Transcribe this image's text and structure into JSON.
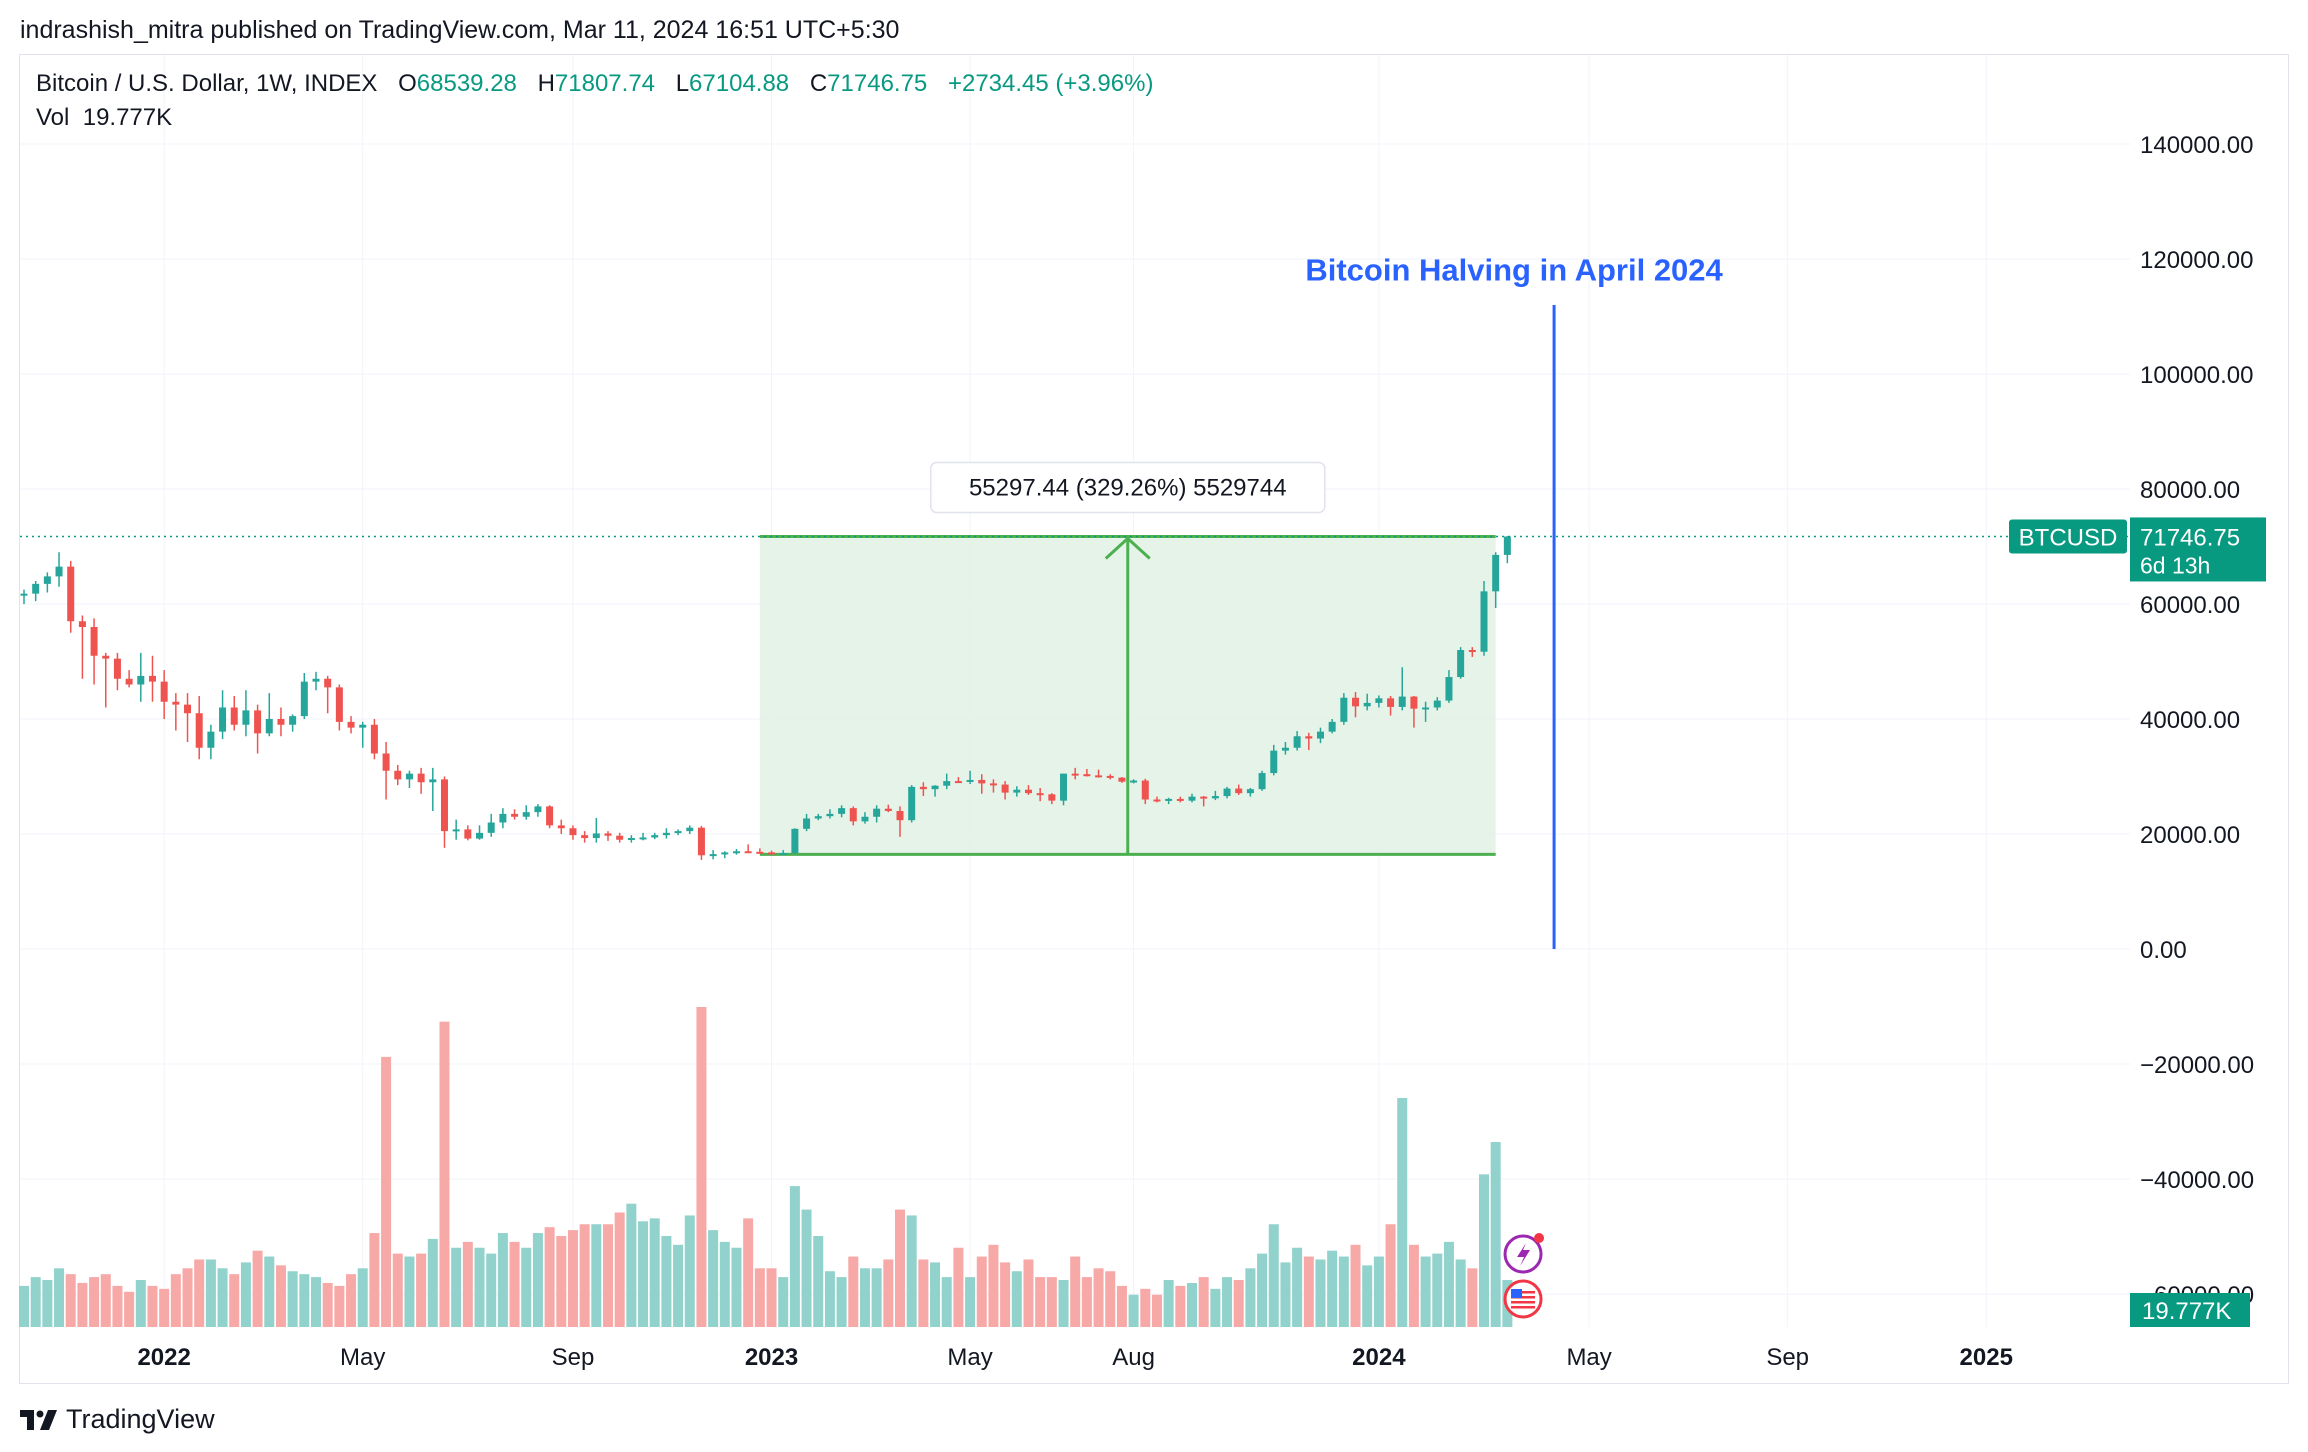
{
  "header": {
    "published": "indrashish_mitra published on TradingView.com, Mar 11, 2024 16:51 UTC+5:30"
  },
  "legend": {
    "symbol": "Bitcoin / U.S. Dollar, 1W, INDEX",
    "open_label": "O",
    "open": "68539.28",
    "high_label": "H",
    "high": "71807.74",
    "low_label": "L",
    "low": "67104.88",
    "close_label": "C",
    "close": "71746.75",
    "change": "+2734.45 (+3.96%)",
    "vol_label": "Vol",
    "vol": "19.777K"
  },
  "colors": {
    "up": "#26a69a",
    "down": "#ef5350",
    "vol_up": "#92d2cc",
    "vol_down": "#f7a9a7",
    "range_fill": "#e3f2e5",
    "range_line": "#4caf50",
    "halving_line": "#2962ff",
    "halving_text": "#2962ff",
    "badge": "#089981"
  },
  "chart_data": {
    "type": "candlestick",
    "symbol": "BTCUSD",
    "interval": "1W",
    "ylim": [
      -72000,
      152000
    ],
    "y_ticks": [
      140000,
      120000,
      100000,
      80000,
      60000,
      40000,
      20000,
      0,
      -20000,
      -40000,
      -60000
    ],
    "y_tick_labels": [
      "140000.00",
      "120000.00",
      "100000.00",
      "80000.00",
      "60000.00",
      "40000.00",
      "20000.00",
      "0.00",
      "−20000.00",
      "−40000.00",
      "−60000.00"
    ],
    "x_labels": [
      {
        "label": "2022",
        "week": 12,
        "bold": true
      },
      {
        "label": "May",
        "week": 29,
        "bold": false
      },
      {
        "label": "Sep",
        "week": 47,
        "bold": false
      },
      {
        "label": "2023",
        "week": 64,
        "bold": true
      },
      {
        "label": "May",
        "week": 81,
        "bold": false
      },
      {
        "label": "Aug",
        "week": 95,
        "bold": false
      },
      {
        "label": "2024",
        "week": 116,
        "bold": true
      },
      {
        "label": "May",
        "week": 134,
        "bold": false
      },
      {
        "label": "Sep",
        "week": 151,
        "bold": false
      },
      {
        "label": "2025",
        "week": 168,
        "bold": true
      }
    ],
    "candles": [
      [
        61500,
        62500,
        60000,
        61800,
        14
      ],
      [
        61800,
        64000,
        60500,
        63500,
        17
      ],
      [
        63500,
        65500,
        62000,
        64800,
        16
      ],
      [
        64800,
        69000,
        63000,
        66500,
        20
      ],
      [
        66500,
        67500,
        55000,
        57000,
        18
      ],
      [
        57000,
        58000,
        47000,
        56000,
        15
      ],
      [
        56000,
        57500,
        46000,
        51000,
        17
      ],
      [
        51000,
        51500,
        42000,
        50500,
        18
      ],
      [
        50500,
        51500,
        45000,
        47000,
        14
      ],
      [
        47000,
        48500,
        45500,
        46000,
        12
      ],
      [
        46000,
        51500,
        43000,
        47500,
        16
      ],
      [
        47500,
        51000,
        43000,
        46500,
        14
      ],
      [
        46500,
        48500,
        40000,
        43000,
        13
      ],
      [
        43000,
        44500,
        38000,
        42500,
        18
      ],
      [
        42500,
        44500,
        36000,
        41000,
        20
      ],
      [
        41000,
        44000,
        33000,
        35000,
        23
      ],
      [
        35000,
        39000,
        33000,
        37800,
        23
      ],
      [
        37800,
        45000,
        36500,
        42000,
        20
      ],
      [
        42000,
        44000,
        38000,
        39000,
        18
      ],
      [
        39000,
        45000,
        37000,
        41500,
        22
      ],
      [
        41500,
        42500,
        34000,
        37500,
        26
      ],
      [
        37500,
        44500,
        37000,
        40000,
        24
      ],
      [
        40000,
        42000,
        37000,
        39000,
        21
      ],
      [
        39000,
        40800,
        37800,
        40500,
        19
      ],
      [
        40500,
        48000,
        40000,
        46500,
        18
      ],
      [
        46500,
        48200,
        45000,
        47000,
        17
      ],
      [
        47000,
        47500,
        41000,
        45500,
        15
      ],
      [
        45500,
        46000,
        38000,
        39500,
        14
      ],
      [
        39500,
        40500,
        37500,
        38500,
        18
      ],
      [
        38500,
        39500,
        35000,
        39000,
        20
      ],
      [
        39000,
        40000,
        33000,
        34000,
        32
      ],
      [
        34000,
        36000,
        26000,
        31000,
        92
      ],
      [
        31000,
        32000,
        28500,
        29500,
        25
      ],
      [
        29500,
        31000,
        28000,
        30500,
        24
      ],
      [
        30500,
        31500,
        27000,
        29000,
        25
      ],
      [
        29000,
        31500,
        24000,
        29500,
        30
      ],
      [
        29500,
        30000,
        17600,
        20500,
        104
      ],
      [
        20500,
        22500,
        19000,
        20800,
        27
      ],
      [
        20800,
        21500,
        18900,
        19200,
        29
      ],
      [
        19200,
        21500,
        19000,
        20200,
        27
      ],
      [
        20200,
        23500,
        19500,
        22000,
        25
      ],
      [
        22000,
        24500,
        21000,
        23500,
        32
      ],
      [
        23500,
        24300,
        22500,
        23000,
        29
      ],
      [
        23000,
        25000,
        22500,
        23800,
        27
      ],
      [
        23800,
        25200,
        23000,
        24800,
        32
      ],
      [
        24800,
        25000,
        21000,
        21500,
        34
      ],
      [
        21500,
        22500,
        20000,
        21000,
        31
      ],
      [
        21000,
        21500,
        19000,
        19800,
        33
      ],
      [
        19800,
        20500,
        18500,
        19300,
        35
      ],
      [
        19300,
        22800,
        18500,
        20100,
        35
      ],
      [
        20100,
        20500,
        18800,
        19700,
        35
      ],
      [
        19700,
        20200,
        18500,
        19000,
        39
      ],
      [
        19000,
        19800,
        18500,
        19300,
        42
      ],
      [
        19300,
        20200,
        18900,
        19400,
        36
      ],
      [
        19400,
        20200,
        19100,
        19800,
        37
      ],
      [
        19800,
        21000,
        19200,
        20200,
        31
      ],
      [
        20200,
        20800,
        19800,
        20500,
        28
      ],
      [
        20500,
        21500,
        20000,
        21100,
        38
      ],
      [
        21100,
        21400,
        15500,
        16300,
        109
      ],
      [
        16300,
        17200,
        15600,
        16500,
        33
      ],
      [
        16500,
        17000,
        15800,
        16800,
        29
      ],
      [
        16800,
        17400,
        16400,
        17000,
        27
      ],
      [
        17000,
        18200,
        16700,
        16900,
        37
      ],
      [
        16900,
        17500,
        16600,
        16800,
        20
      ],
      [
        16800,
        17100,
        16400,
        16600,
        20
      ],
      [
        16600,
        17200,
        16500,
        16700,
        17
      ],
      [
        16700,
        21000,
        16500,
        20900,
        48
      ],
      [
        20900,
        23500,
        20500,
        22700,
        40
      ],
      [
        22700,
        23500,
        22400,
        23100,
        31
      ],
      [
        23100,
        24300,
        22700,
        23500,
        19
      ],
      [
        23500,
        25000,
        22900,
        24500,
        17
      ],
      [
        24500,
        24800,
        21500,
        22200,
        24
      ],
      [
        22200,
        23800,
        21800,
        23000,
        20
      ],
      [
        23000,
        25000,
        22000,
        24400,
        20
      ],
      [
        24400,
        25100,
        23800,
        24000,
        23
      ],
      [
        24000,
        24800,
        19500,
        22400,
        40
      ],
      [
        22400,
        28500,
        22000,
        28200,
        38
      ],
      [
        28200,
        29000,
        26600,
        27800,
        23
      ],
      [
        27800,
        28500,
        26500,
        28400,
        22
      ],
      [
        28400,
        30500,
        27800,
        29200,
        17
      ],
      [
        29200,
        29900,
        28900,
        29100,
        27
      ],
      [
        29100,
        31000,
        28700,
        29400,
        17
      ],
      [
        29400,
        30400,
        27000,
        28800,
        24
      ],
      [
        28800,
        29500,
        27200,
        28600,
        28
      ],
      [
        28600,
        29200,
        26000,
        27200,
        22
      ],
      [
        27200,
        28300,
        26500,
        27700,
        19
      ],
      [
        27700,
        28500,
        26800,
        27100,
        23
      ],
      [
        27100,
        28000,
        25700,
        26900,
        17
      ],
      [
        26900,
        27100,
        25200,
        25800,
        17
      ],
      [
        25800,
        30500,
        25000,
        30500,
        16
      ],
      [
        30500,
        31500,
        29500,
        30400,
        24
      ],
      [
        30400,
        31300,
        30000,
        30200,
        17
      ],
      [
        30200,
        31200,
        29800,
        30100,
        20
      ],
      [
        30100,
        30400,
        29500,
        29800,
        19
      ],
      [
        29800,
        29900,
        28900,
        29100,
        14
      ],
      [
        29100,
        29500,
        28800,
        29300,
        11
      ],
      [
        29300,
        29600,
        25200,
        26000,
        13
      ],
      [
        26000,
        26500,
        25500,
        25900,
        11
      ],
      [
        25900,
        26300,
        25200,
        26100,
        16
      ],
      [
        26100,
        26500,
        25500,
        25800,
        14
      ],
      [
        25800,
        27000,
        25500,
        26500,
        15
      ],
      [
        26500,
        26600,
        24800,
        26200,
        17
      ],
      [
        26200,
        27500,
        25900,
        26600,
        13
      ],
      [
        26600,
        28200,
        26200,
        27900,
        17
      ],
      [
        27900,
        28600,
        26800,
        27100,
        16
      ],
      [
        27100,
        28000,
        26500,
        27800,
        20
      ],
      [
        27800,
        31000,
        27500,
        30600,
        25
      ],
      [
        30600,
        35500,
        30200,
        34500,
        35
      ],
      [
        34500,
        36000,
        33800,
        35000,
        22
      ],
      [
        35000,
        37900,
        34500,
        37000,
        27
      ],
      [
        37000,
        37600,
        34600,
        36600,
        24
      ],
      [
        36600,
        38500,
        35800,
        37800,
        23
      ],
      [
        37800,
        40000,
        37500,
        39500,
        26
      ],
      [
        39500,
        44500,
        39000,
        43700,
        24
      ],
      [
        43700,
        44700,
        40300,
        42200,
        28
      ],
      [
        42200,
        44400,
        41500,
        42800,
        21
      ],
      [
        42800,
        44100,
        42000,
        43600,
        24
      ],
      [
        43600,
        44000,
        40600,
        42100,
        35
      ],
      [
        42100,
        49000,
        41500,
        43900,
        78
      ],
      [
        43900,
        44000,
        38500,
        41800,
        28
      ],
      [
        41800,
        43000,
        39500,
        42000,
        24
      ],
      [
        42000,
        43800,
        41500,
        43200,
        25
      ],
      [
        43200,
        48500,
        42800,
        47300,
        29
      ],
      [
        47300,
        52500,
        47000,
        52000,
        23
      ],
      [
        52000,
        52500,
        50800,
        51700,
        20
      ],
      [
        51700,
        64000,
        51000,
        62200,
        52
      ],
      [
        62200,
        69000,
        59300,
        68540,
        63
      ],
      [
        68540,
        71800,
        67100,
        71740,
        16
      ]
    ],
    "range_measure": {
      "label": "55297.44 (329.26%) 5529744",
      "from_week": 63,
      "to_week": 126,
      "low": 16450,
      "high": 71747
    },
    "annotation": {
      "text": "Bitcoin Halving in April 2024",
      "week": 131,
      "from": 0,
      "to": 112000,
      "text_y": 118000
    },
    "last_price": {
      "symbol": "BTCUSD",
      "price": "71746.75",
      "countdown": "6d 13h",
      "volume_label": "19.777K"
    },
    "volume_axis": {
      "max_value": 109
    }
  },
  "footer": {
    "brand": "TradingView"
  }
}
